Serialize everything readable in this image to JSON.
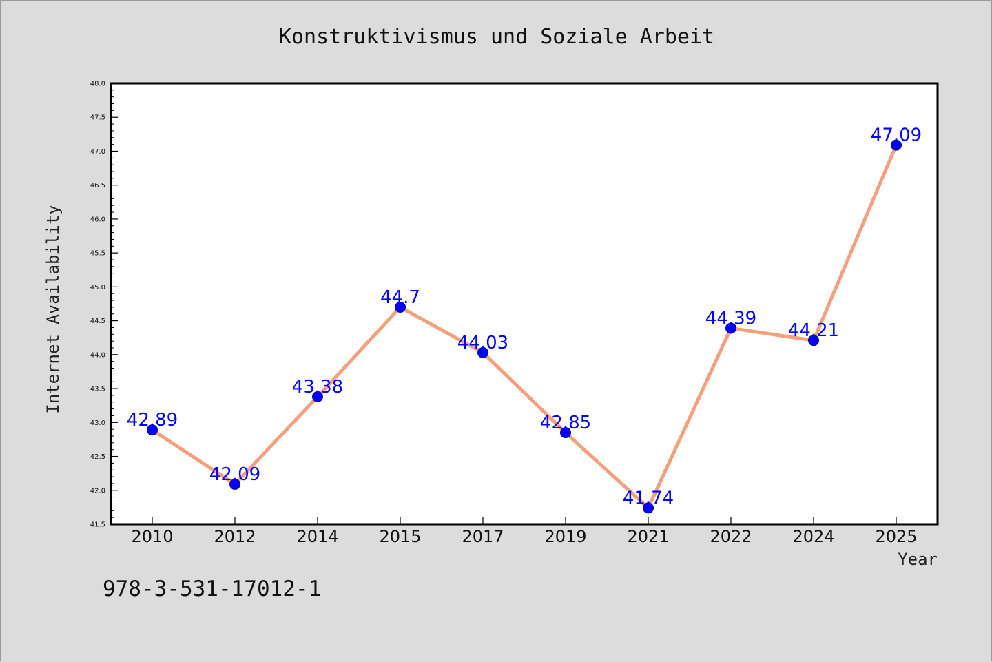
{
  "chart_data": {
    "type": "line",
    "title": "Konstruktivismus und Soziale Arbeit",
    "xlabel": "Year",
    "ylabel": "Internet Availability",
    "categories": [
      "2010",
      "2012",
      "2014",
      "2015",
      "2017",
      "2019",
      "2021",
      "2022",
      "2024",
      "2025"
    ],
    "values": [
      42.89,
      42.09,
      43.38,
      44.7,
      44.03,
      42.85,
      41.74,
      44.39,
      44.21,
      47.09
    ],
    "data_labels": [
      "42.89",
      "42.09",
      "43.38",
      "44.7",
      "44.03",
      "42.85",
      "41.74",
      "44.39",
      "44.21",
      "47.09"
    ],
    "ylim": [
      41.5,
      48.0
    ],
    "y_ticks": [
      "41.5",
      "42.0",
      "42.5",
      "43.0",
      "43.5",
      "44.0",
      "44.5",
      "45.0",
      "45.5",
      "46.0",
      "46.5",
      "47.0",
      "47.5",
      "48.0"
    ],
    "grid": false,
    "legend": "none",
    "colors": {
      "line": "#f4a07e",
      "marker": "#0000ff",
      "data_label": "#0000ff",
      "background": "#dcdcdc",
      "plot_background": "#ffffff"
    }
  },
  "footer": {
    "isbn": "978-3-531-17012-1"
  }
}
